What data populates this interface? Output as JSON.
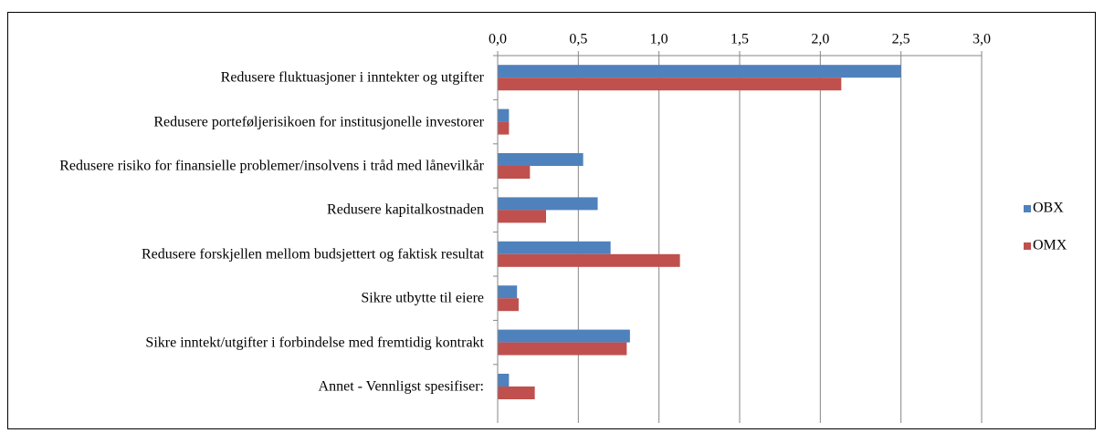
{
  "chart_data": {
    "type": "bar",
    "orientation": "horizontal",
    "categories": [
      "Redusere fluktuasjoner i inntekter og utgifter",
      "Redusere porteføljerisikoen for institusjonelle investorer",
      "Redusere risiko for finansielle problemer/insolvens i tråd med lånevilkår",
      "Redusere kapitalkostnaden",
      "Redusere forskjellen mellom budsjettert og faktisk resultat",
      "Sikre utbytte til eiere",
      "Sikre inntekt/utgifter i forbindelse med fremtidig kontrakt",
      "Annet - Vennligst spesifiser:"
    ],
    "series": [
      {
        "name": "OBX",
        "color": "#4f81bd",
        "values": [
          2.5,
          0.07,
          0.53,
          0.62,
          0.7,
          0.12,
          0.82,
          0.07
        ]
      },
      {
        "name": "OMX",
        "color": "#c0504d",
        "values": [
          2.13,
          0.07,
          0.2,
          0.3,
          1.13,
          0.13,
          0.8,
          0.23
        ]
      }
    ],
    "xlim": [
      0,
      3
    ],
    "xticks": [
      {
        "value": 0,
        "label": "0,0"
      },
      {
        "value": 0.5,
        "label": "0,5"
      },
      {
        "value": 1,
        "label": "1,0"
      },
      {
        "value": 1.5,
        "label": "1,5"
      },
      {
        "value": 2,
        "label": "2,0"
      },
      {
        "value": 2.5,
        "label": "2,5"
      },
      {
        "value": 3,
        "label": "3,0"
      }
    ],
    "grid": true,
    "legend": "right"
  }
}
